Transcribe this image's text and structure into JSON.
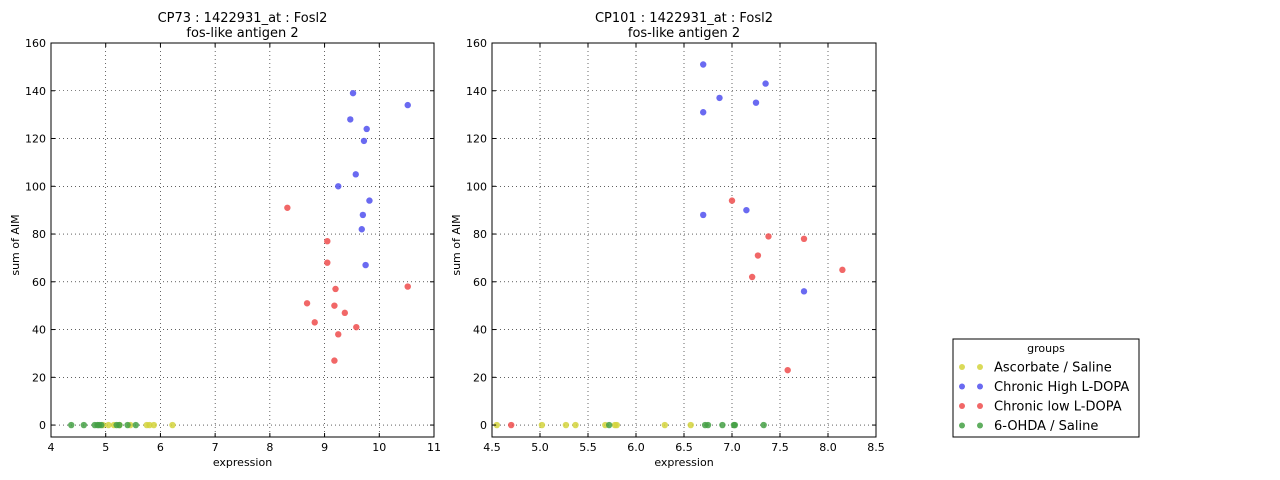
{
  "legend": {
    "title": "groups",
    "placement": "right-bottom",
    "entries": [
      {
        "name": "Ascorbate / Saline",
        "color": "#d4d43c"
      },
      {
        "name": "Chronic High L-DOPA",
        "color": "#5050ee"
      },
      {
        "name": "Chronic low L-DOPA",
        "color": "#ee4c4c"
      },
      {
        "name": "6-OHDA / Saline",
        "color": "#44a044"
      }
    ]
  },
  "chart_data": [
    {
      "type": "scatter",
      "title_line1": "CP73 : 1422931_at : Fosl2",
      "title_line2": "fos-like antigen 2",
      "xlabel": "expression",
      "ylabel": "sum of AIM",
      "xlim": [
        4,
        11
      ],
      "ylim": [
        -5,
        160
      ],
      "xticks": [
        4,
        5,
        6,
        7,
        8,
        9,
        10,
        11
      ],
      "yticks": [
        0,
        20,
        40,
        60,
        80,
        100,
        120,
        140,
        160
      ],
      "grid": true,
      "series": [
        {
          "name": "Ascorbate / Saline",
          "points": [
            [
              4.95,
              0
            ],
            [
              5.05,
              0
            ],
            [
              5.15,
              0
            ],
            [
              5.25,
              0
            ],
            [
              5.45,
              0
            ],
            [
              5.75,
              0
            ],
            [
              5.8,
              0
            ],
            [
              5.88,
              0
            ],
            [
              6.22,
              0
            ]
          ]
        },
        {
          "name": "Chronic High L-DOPA",
          "points": [
            [
              9.52,
              139
            ],
            [
              10.52,
              134
            ],
            [
              9.47,
              128
            ],
            [
              9.77,
              124
            ],
            [
              9.72,
              119
            ],
            [
              9.57,
              105
            ],
            [
              9.25,
              100
            ],
            [
              9.82,
              94
            ],
            [
              9.7,
              88
            ],
            [
              9.68,
              82
            ],
            [
              9.75,
              67
            ]
          ]
        },
        {
          "name": "Chronic low L-DOPA",
          "points": [
            [
              8.32,
              91
            ],
            [
              9.05,
              77
            ],
            [
              9.05,
              68
            ],
            [
              10.52,
              58
            ],
            [
              9.2,
              57
            ],
            [
              8.68,
              51
            ],
            [
              9.18,
              50
            ],
            [
              9.37,
              47
            ],
            [
              8.82,
              43
            ],
            [
              9.58,
              41
            ],
            [
              9.25,
              38
            ],
            [
              9.18,
              27
            ]
          ]
        },
        {
          "name": "6-OHDA / Saline",
          "points": [
            [
              4.37,
              0
            ],
            [
              4.6,
              0
            ],
            [
              4.8,
              0
            ],
            [
              4.85,
              0
            ],
            [
              4.88,
              0
            ],
            [
              4.92,
              0
            ],
            [
              5.2,
              0
            ],
            [
              5.25,
              0
            ],
            [
              5.4,
              0
            ],
            [
              5.55,
              0
            ]
          ]
        }
      ]
    },
    {
      "type": "scatter",
      "title_line1": "CP101 : 1422931_at : Fosl2",
      "title_line2": "fos-like antigen 2",
      "xlabel": "expression",
      "ylabel": "sum of AIM",
      "xlim": [
        4.5,
        8.5
      ],
      "ylim": [
        -5,
        160
      ],
      "xticks": [
        4.5,
        5.0,
        5.5,
        6.0,
        6.5,
        7.0,
        7.5,
        8.0,
        8.5
      ],
      "yticks": [
        0,
        20,
        40,
        60,
        80,
        100,
        120,
        140,
        160
      ],
      "grid": true,
      "series": [
        {
          "name": "Ascorbate / Saline",
          "points": [
            [
              4.55,
              0
            ],
            [
              5.02,
              0
            ],
            [
              5.27,
              0
            ],
            [
              5.37,
              0
            ],
            [
              5.68,
              0
            ],
            [
              5.78,
              0
            ],
            [
              5.8,
              0
            ],
            [
              6.3,
              0
            ],
            [
              6.57,
              0
            ]
          ]
        },
        {
          "name": "Chronic High L-DOPA",
          "points": [
            [
              6.7,
              151
            ],
            [
              7.35,
              143
            ],
            [
              6.87,
              137
            ],
            [
              7.25,
              135
            ],
            [
              6.7,
              131
            ],
            [
              7.15,
              90
            ],
            [
              6.7,
              88
            ],
            [
              7.75,
              56
            ]
          ]
        },
        {
          "name": "Chronic low L-DOPA",
          "points": [
            [
              4.7,
              0
            ],
            [
              7.0,
              94
            ],
            [
              7.38,
              79
            ],
            [
              7.75,
              78
            ],
            [
              7.27,
              71
            ],
            [
              8.15,
              65
            ],
            [
              7.21,
              62
            ],
            [
              7.58,
              23
            ]
          ]
        },
        {
          "name": "6-OHDA / Saline",
          "points": [
            [
              5.72,
              0
            ],
            [
              6.72,
              0
            ],
            [
              6.75,
              0
            ],
            [
              6.9,
              0
            ],
            [
              7.02,
              0
            ],
            [
              7.03,
              0
            ],
            [
              7.33,
              0
            ]
          ]
        }
      ]
    }
  ]
}
